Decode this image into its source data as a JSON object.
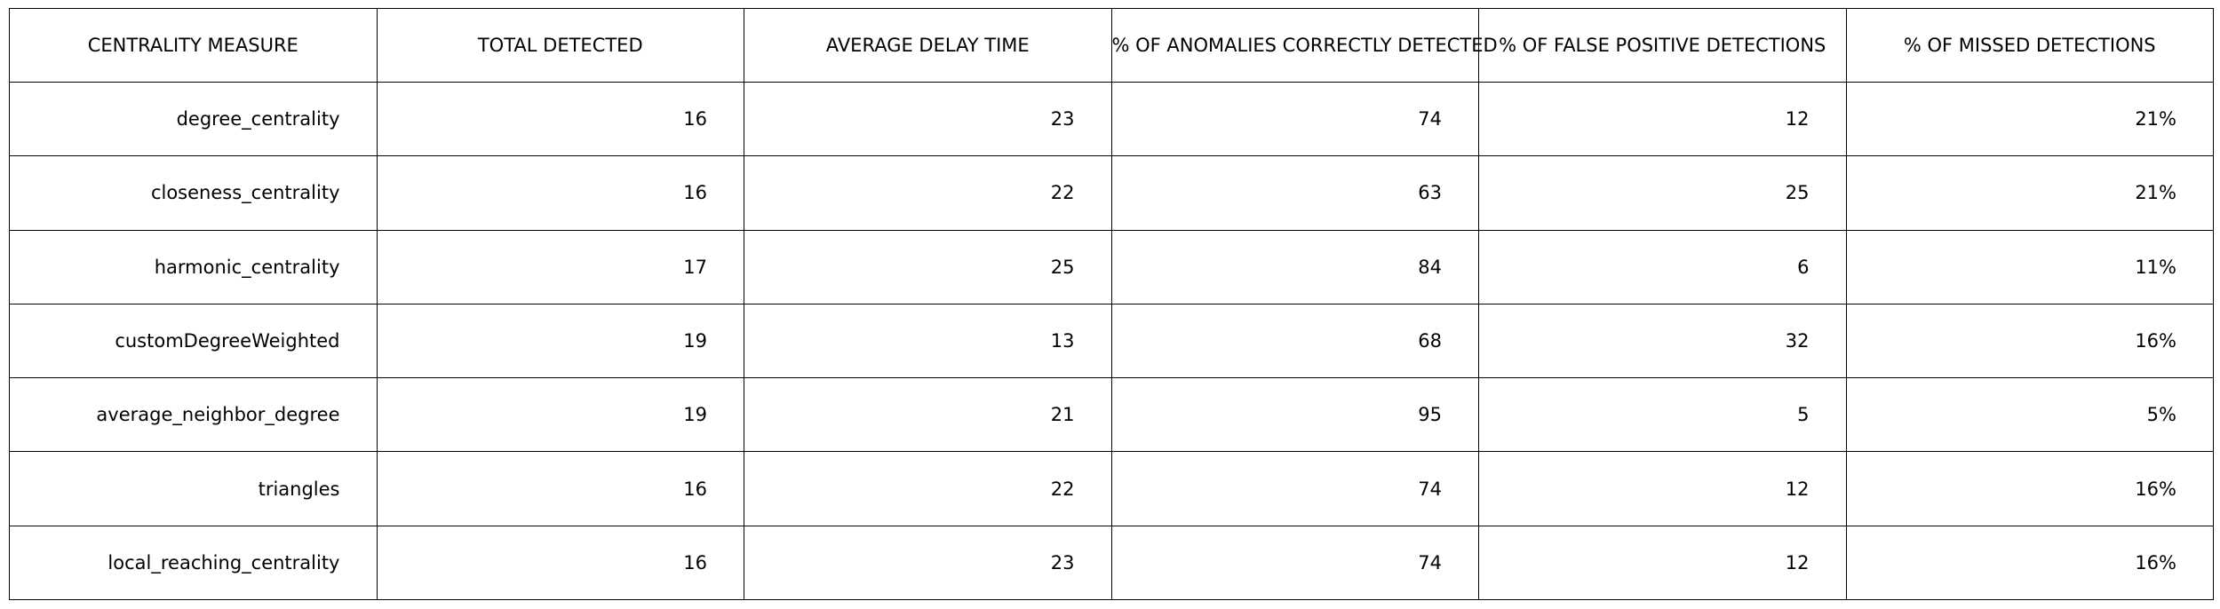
{
  "chart_data": {
    "type": "table",
    "columns": [
      "CENTRALITY MEASURE",
      "TOTAL DETECTED",
      "AVERAGE DELAY TIME",
      "% OF ANOMALIES CORRECTLY DETECTED",
      "% OF FALSE POSITIVE DETECTIONS",
      "% OF MISSED DETECTIONS"
    ],
    "rows": [
      [
        "degree_centrality",
        "16",
        "23",
        "74",
        "12",
        "21%"
      ],
      [
        "closeness_centrality",
        "16",
        "22",
        "63",
        "25",
        "21%"
      ],
      [
        "harmonic_centrality",
        "17",
        "25",
        "84",
        "6",
        "11%"
      ],
      [
        "customDegreeWeighted",
        "19",
        "13",
        "68",
        "32",
        "16%"
      ],
      [
        "average_neighbor_degree",
        "19",
        "21",
        "95",
        "5",
        "5%"
      ],
      [
        "triangles",
        "16",
        "22",
        "74",
        "12",
        "16%"
      ],
      [
        "local_reaching_centrality",
        "16",
        "23",
        "74",
        "12",
        "16%"
      ]
    ]
  }
}
